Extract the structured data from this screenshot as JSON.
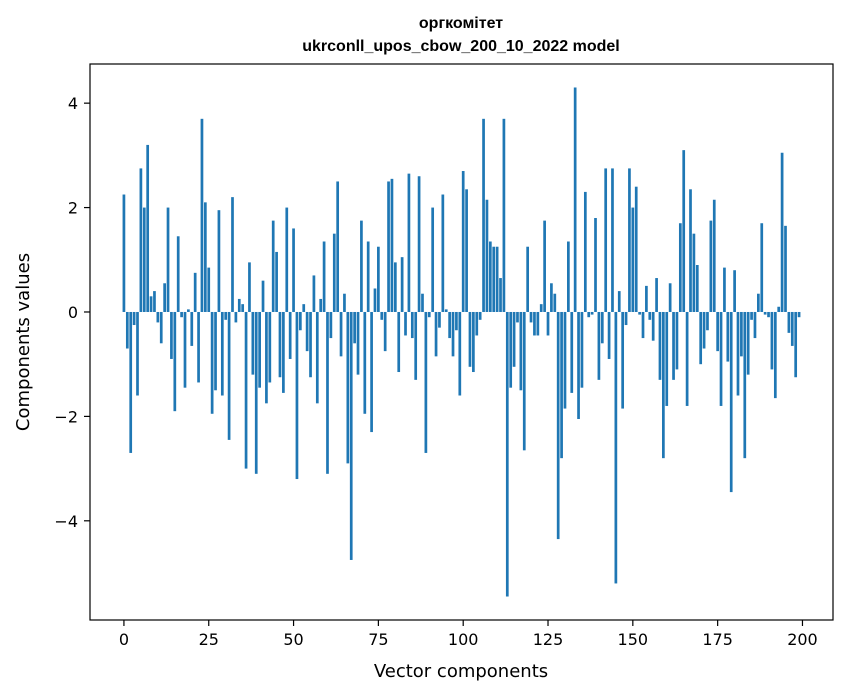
{
  "chart_data": {
    "type": "bar",
    "title": [
      "оргкомітет",
      "ukrconll_upos_cbow_200_10_2022 model"
    ],
    "xlabel": "Vector components",
    "ylabel": "Components values",
    "xlim": [
      -10,
      209
    ],
    "ylim": [
      -5.9,
      4.75
    ],
    "xticks": [
      0,
      25,
      50,
      75,
      100,
      125,
      150,
      175,
      200
    ],
    "yticks": [
      -4,
      -2,
      0,
      2,
      4
    ],
    "ytick_labels": [
      "−4",
      "−2",
      "0",
      "2",
      "4"
    ],
    "grid": false,
    "bar_color": "#1f77b4",
    "x": [
      0,
      1,
      2,
      3,
      4,
      5,
      6,
      7,
      8,
      9,
      10,
      11,
      12,
      13,
      14,
      15,
      16,
      17,
      18,
      19,
      20,
      21,
      22,
      23,
      24,
      25,
      26,
      27,
      28,
      29,
      30,
      31,
      32,
      33,
      34,
      35,
      36,
      37,
      38,
      39,
      40,
      41,
      42,
      43,
      44,
      45,
      46,
      47,
      48,
      49,
      50,
      51,
      52,
      53,
      54,
      55,
      56,
      57,
      58,
      59,
      60,
      61,
      62,
      63,
      64,
      65,
      66,
      67,
      68,
      69,
      70,
      71,
      72,
      73,
      74,
      75,
      76,
      77,
      78,
      79,
      80,
      81,
      82,
      83,
      84,
      85,
      86,
      87,
      88,
      89,
      90,
      91,
      92,
      93,
      94,
      95,
      96,
      97,
      98,
      99,
      100,
      101,
      102,
      103,
      104,
      105,
      106,
      107,
      108,
      109,
      110,
      111,
      112,
      113,
      114,
      115,
      116,
      117,
      118,
      119,
      120,
      121,
      122,
      123,
      124,
      125,
      126,
      127,
      128,
      129,
      130,
      131,
      132,
      133,
      134,
      135,
      136,
      137,
      138,
      139,
      140,
      141,
      142,
      143,
      144,
      145,
      146,
      147,
      148,
      149,
      150,
      151,
      152,
      153,
      154,
      155,
      156,
      157,
      158,
      159,
      160,
      161,
      162,
      163,
      164,
      165,
      166,
      167,
      168,
      169,
      170,
      171,
      172,
      173,
      174,
      175,
      176,
      177,
      178,
      179,
      180,
      181,
      182,
      183,
      184,
      185,
      186,
      187,
      188,
      189,
      190,
      191,
      192,
      193,
      194,
      195,
      196,
      197,
      198,
      199
    ],
    "values": [
      2.25,
      -0.7,
      -2.7,
      -0.25,
      -1.6,
      2.75,
      2.0,
      3.2,
      0.3,
      0.4,
      -0.2,
      -0.6,
      0.55,
      2.0,
      -0.9,
      -1.9,
      1.45,
      -0.1,
      -1.45,
      0.05,
      -0.65,
      0.75,
      -1.35,
      3.7,
      2.1,
      0.85,
      -1.95,
      -1.5,
      1.95,
      -1.6,
      -0.15,
      -2.45,
      2.2,
      -0.2,
      0.25,
      0.15,
      -3.0,
      0.95,
      -1.2,
      -3.1,
      -1.45,
      0.6,
      -1.75,
      -1.35,
      1.75,
      1.15,
      -1.25,
      -1.55,
      2.0,
      -0.9,
      1.6,
      -3.2,
      -0.35,
      0.15,
      -0.75,
      -1.25,
      0.7,
      -1.75,
      0.25,
      1.35,
      -3.1,
      -0.5,
      1.5,
      2.5,
      -0.85,
      0.35,
      -2.9,
      -4.75,
      -0.6,
      -1.2,
      1.75,
      -1.95,
      1.35,
      -2.3,
      0.45,
      1.25,
      -0.15,
      -0.75,
      2.5,
      2.55,
      0.95,
      -1.15,
      1.05,
      -0.45,
      2.65,
      -0.5,
      -1.3,
      2.6,
      0.35,
      -2.7,
      -0.1,
      2.0,
      -0.85,
      -0.3,
      2.25,
      0.05,
      -0.5,
      -0.85,
      -0.35,
      -1.6,
      2.7,
      2.35,
      -1.05,
      -1.15,
      -0.45,
      -0.15,
      3.7,
      2.15,
      1.35,
      1.25,
      1.25,
      0.65,
      3.7,
      -5.45,
      -1.45,
      -1.05,
      -0.2,
      -1.5,
      -2.65,
      1.25,
      -0.2,
      -0.45,
      -0.45,
      0.15,
      1.75,
      -0.45,
      0.55,
      0.35,
      -4.35,
      -2.8,
      -1.85,
      1.35,
      -1.55,
      4.3,
      -2.05,
      -1.45,
      2.3,
      -0.1,
      -0.05,
      1.8,
      -1.3,
      -0.6,
      2.75,
      -0.9,
      2.75,
      -5.2,
      0.4,
      -1.85,
      -0.25,
      2.75,
      2.0,
      2.4,
      -0.05,
      -0.5,
      0.5,
      -0.15,
      -0.55,
      0.65,
      -1.3,
      -2.8,
      -1.8,
      0.55,
      -1.3,
      -1.1,
      1.7,
      3.1,
      -1.8,
      2.35,
      1.5,
      0.9,
      -1.0,
      -0.7,
      -0.35,
      1.75,
      2.15,
      -0.75,
      -1.8,
      0.85,
      -0.95,
      -3.45,
      0.8,
      -1.6,
      -0.85,
      -2.8,
      -1.2,
      -0.15,
      -0.5,
      0.35,
      1.7,
      -0.05,
      -0.1,
      -1.1,
      -1.65,
      0.1,
      3.05,
      1.65,
      -0.4,
      -0.65,
      -1.25,
      -0.1
    ]
  }
}
